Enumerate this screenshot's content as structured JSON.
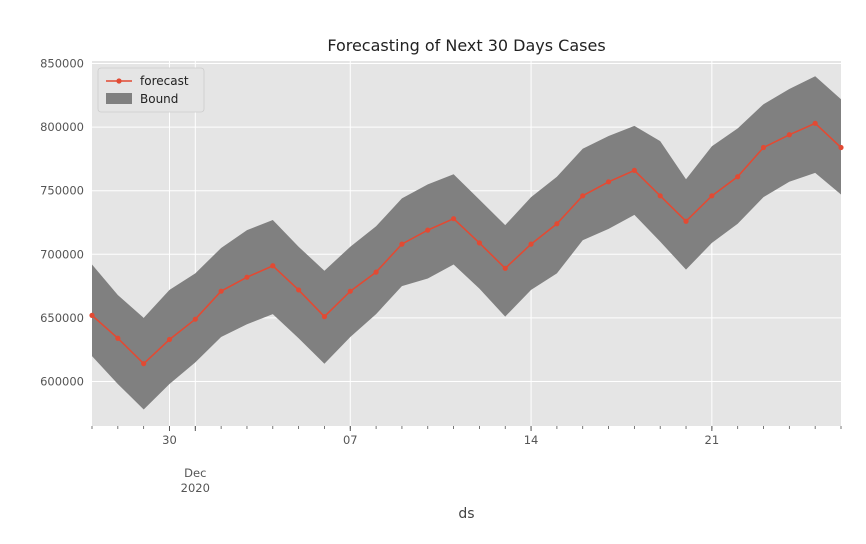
{
  "chart_data": {
    "type": "line",
    "title": "Forecasting of Next 30 Days Cases",
    "xlabel": "ds",
    "ylabel": "",
    "x": [
      "2020-11-27",
      "2020-11-28",
      "2020-11-29",
      "2020-11-30",
      "2020-12-01",
      "2020-12-02",
      "2020-12-03",
      "2020-12-04",
      "2020-12-05",
      "2020-12-06",
      "2020-12-07",
      "2020-12-08",
      "2020-12-09",
      "2020-12-10",
      "2020-12-11",
      "2020-12-12",
      "2020-12-13",
      "2020-12-14",
      "2020-12-15",
      "2020-12-16",
      "2020-12-17",
      "2020-12-18",
      "2020-12-19",
      "2020-12-20",
      "2020-12-21",
      "2020-12-22",
      "2020-12-23",
      "2020-12-24",
      "2020-12-25",
      "2020-12-26"
    ],
    "series": [
      {
        "name": "forecast",
        "color": "#e24a33",
        "values": [
          652000,
          634000,
          614000,
          633000,
          649000,
          671000,
          682000,
          691000,
          672000,
          651000,
          671000,
          686000,
          708000,
          719000,
          728000,
          709000,
          689000,
          708000,
          724000,
          746000,
          757000,
          766000,
          746000,
          726000,
          746000,
          761000,
          784000,
          794000,
          803000,
          784000
        ]
      }
    ],
    "bound": {
      "name": "Bound",
      "color": "#808080",
      "upper": [
        692000,
        668000,
        650000,
        672000,
        685000,
        705000,
        719000,
        727000,
        706000,
        687000,
        706000,
        722000,
        744000,
        755000,
        763000,
        743000,
        723000,
        745000,
        761000,
        783000,
        793000,
        801000,
        789000,
        759000,
        785000,
        799000,
        818000,
        830000,
        840000,
        822000
      ],
      "lower": [
        620000,
        598000,
        578000,
        598000,
        615000,
        635000,
        645000,
        653000,
        634000,
        614000,
        635000,
        653000,
        675000,
        681000,
        692000,
        673000,
        651000,
        672000,
        685000,
        711000,
        720000,
        731000,
        710000,
        688000,
        709000,
        724000,
        745000,
        757000,
        764000,
        747000
      ]
    },
    "ylim": [
      565000,
      852000
    ],
    "yticks": [
      600000,
      650000,
      700000,
      750000,
      800000,
      850000
    ],
    "ytick_labels": [
      "600000",
      "650000",
      "700000",
      "750000",
      "800000",
      "850000"
    ],
    "xticks_major": [
      {
        "date": "2020-11-30",
        "label": "30"
      },
      {
        "date": "2020-12-07",
        "label": "07"
      },
      {
        "date": "2020-12-14",
        "label": "14"
      },
      {
        "date": "2020-12-21",
        "label": "21"
      }
    ],
    "xtick_month": {
      "date": "2020-12-01",
      "label": "Dec",
      "year": "2020"
    },
    "legend": "upper-left",
    "grid": true,
    "background": "#e5e5e5"
  }
}
